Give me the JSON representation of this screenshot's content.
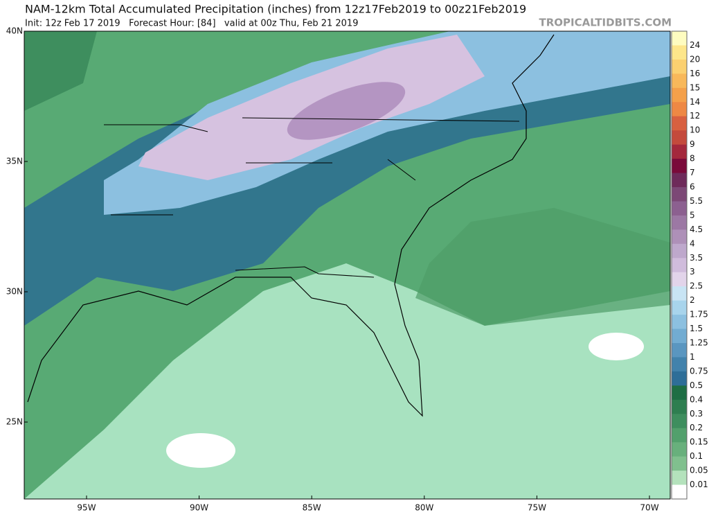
{
  "header": {
    "title": "NAM-12km Total Accumulated Precipitation (inches) from 12z17Feb2019 to 00z21Feb2019",
    "subtitle": "Init: 12z Feb 17 2019   Forecast Hour: [84]   valid at 00z Thu, Feb 21 2019",
    "brand": "TROPICALTIDBITS.COM"
  },
  "map": {
    "lat_labels": [
      "40N",
      "35N",
      "30N",
      "25N"
    ],
    "lon_labels": [
      "95W",
      "90W",
      "85W",
      "80W",
      "75W",
      "70W"
    ]
  },
  "colorbar": {
    "labels": [
      "24",
      "20",
      "16",
      "15",
      "14",
      "12",
      "10",
      "9",
      "8",
      "7",
      "6",
      "5.5",
      "5",
      "4.5",
      "4",
      "3.5",
      "3",
      "2.5",
      "2",
      "1.75",
      "1.5",
      "1.25",
      "1",
      "0.75",
      "0.5",
      "0.4",
      "0.3",
      "0.2",
      "0.15",
      "0.1",
      "0.05",
      "0.01"
    ],
    "colors": [
      "#fefcc0",
      "#fde68a",
      "#fbd070",
      "#f8b85a",
      "#f4a04a",
      "#ee8844",
      "#d86040",
      "#c44a3c",
      "#a4283c",
      "#7a0a3a",
      "#6e2a5a",
      "#7c4876",
      "#8c6090",
      "#9c78a4",
      "#ae90b8",
      "#bea8cc",
      "#d0bcdc",
      "#e2d4ea",
      "#c8e4f4",
      "#a8d4ec",
      "#8cc0e0",
      "#72acd2",
      "#5a96c0",
      "#4282ac",
      "#2e6e98",
      "#1e6e44",
      "#2e7e50",
      "#3e8e5e",
      "#52a06c",
      "#68b07c",
      "#80c08e",
      "#b4e2bc",
      "#ffffff"
    ]
  }
}
